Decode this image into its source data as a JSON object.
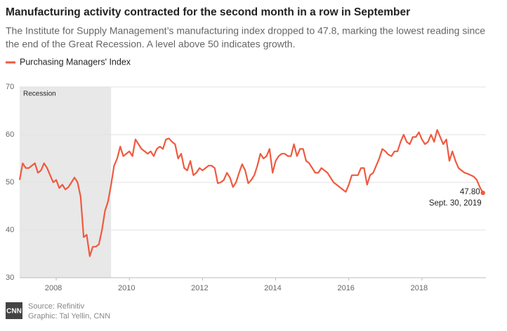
{
  "chart_data": {
    "type": "line",
    "title": "Manufacturing activity contracted for the second month in a row in September",
    "subtitle": [
      "The Institute for Supply Management’s manufacturing index dropped to 47.8, marking the lowest reading since",
      "the end of the Great Recession. A level above 50 indicates growth."
    ],
    "series": [
      {
        "name": "Purchasing Managers' Index",
        "color": "#ef5a3f",
        "x": [
          2007,
          2007.083,
          2007.167,
          2007.25,
          2007.333,
          2007.417,
          2007.5,
          2007.583,
          2007.667,
          2007.75,
          2007.833,
          2007.917,
          2008,
          2008.083,
          2008.167,
          2008.25,
          2008.333,
          2008.417,
          2008.5,
          2008.583,
          2008.667,
          2008.75,
          2008.833,
          2008.917,
          2009,
          2009.083,
          2009.167,
          2009.25,
          2009.333,
          2009.417,
          2009.5,
          2009.583,
          2009.667,
          2009.75,
          2009.833,
          2009.917,
          2010,
          2010.083,
          2010.167,
          2010.25,
          2010.333,
          2010.417,
          2010.5,
          2010.583,
          2010.667,
          2010.75,
          2010.833,
          2010.917,
          2011,
          2011.083,
          2011.167,
          2011.25,
          2011.333,
          2011.417,
          2011.5,
          2011.583,
          2011.667,
          2011.75,
          2011.833,
          2011.917,
          2012,
          2012.083,
          2012.167,
          2012.25,
          2012.333,
          2012.417,
          2012.5,
          2012.583,
          2012.667,
          2012.75,
          2012.833,
          2012.917,
          2013,
          2013.083,
          2013.167,
          2013.25,
          2013.333,
          2013.417,
          2013.5,
          2013.583,
          2013.667,
          2013.75,
          2013.833,
          2013.917,
          2014,
          2014.083,
          2014.167,
          2014.25,
          2014.333,
          2014.417,
          2014.5,
          2014.583,
          2014.667,
          2014.75,
          2014.833,
          2014.917,
          2015,
          2015.083,
          2015.167,
          2015.25,
          2015.333,
          2015.417,
          2015.5,
          2015.583,
          2015.667,
          2015.75,
          2015.833,
          2015.917,
          2016,
          2016.083,
          2016.167,
          2016.25,
          2016.333,
          2016.417,
          2016.5,
          2016.583,
          2016.667,
          2016.75,
          2016.833,
          2016.917,
          2017,
          2017.083,
          2017.167,
          2017.25,
          2017.333,
          2017.417,
          2017.5,
          2017.583,
          2017.667,
          2017.75,
          2017.833,
          2017.917,
          2018,
          2018.083,
          2018.167,
          2018.25,
          2018.333,
          2018.417,
          2018.5,
          2018.583,
          2018.667,
          2018.75,
          2018.833,
          2018.917,
          2019,
          2019.083,
          2019.167,
          2019.25,
          2019.333,
          2019.417,
          2019.5,
          2019.583,
          2019.667
        ],
        "values": [
          50.5,
          54,
          53,
          53,
          53.5,
          54,
          52,
          52.5,
          54,
          53,
          51.5,
          50,
          50.5,
          48.8,
          49.5,
          48.5,
          49,
          50,
          51,
          50,
          47,
          38.5,
          39,
          34.5,
          36.5,
          36.5,
          37,
          40,
          44,
          46,
          49.5,
          53.5,
          55,
          57.5,
          55.5,
          56,
          56.5,
          55.5,
          59,
          58,
          57,
          56.5,
          56,
          56.5,
          55.5,
          57,
          57.5,
          57,
          59,
          59.2,
          58.5,
          58,
          55,
          56,
          53,
          52.5,
          54.5,
          51.5,
          52,
          53,
          52.5,
          53,
          53.5,
          53.5,
          53,
          49.8,
          50,
          50.5,
          52,
          51,
          49,
          50,
          52,
          53.8,
          52.5,
          49.8,
          50.5,
          51.5,
          53.5,
          56,
          55,
          55.5,
          57,
          52,
          54.5,
          55.5,
          56,
          56,
          55.5,
          55.5,
          58,
          55.5,
          57,
          57,
          54.5,
          54,
          53,
          52,
          52,
          53,
          52.5,
          52,
          51,
          50,
          49.5,
          49,
          48.5,
          48,
          49.5,
          51.5,
          51.5,
          51.5,
          53,
          53,
          49.5,
          51.5,
          52,
          53.5,
          55,
          57,
          56.5,
          55.8,
          55.5,
          56.5,
          56.5,
          58.5,
          60,
          58.5,
          58,
          59.5,
          59.5,
          60.5,
          59,
          58,
          58.5,
          60,
          58.5,
          61,
          59.5,
          58,
          59,
          54.5,
          56.5,
          54.5,
          53,
          52.5,
          52,
          51.8,
          51.5,
          51.2,
          50.5,
          49,
          47.8
        ]
      }
    ],
    "xlim": [
      2007,
      2019.75
    ],
    "xticks": [
      2008,
      2010,
      2012,
      2014,
      2016,
      2018
    ],
    "ylim": [
      30,
      70
    ],
    "yticks": [
      30,
      40,
      50,
      60,
      70
    ],
    "grid": true,
    "recession": {
      "label": "Recession",
      "xlim": [
        2007,
        2009.5
      ]
    },
    "end_label": {
      "value": "47.80",
      "date": "Sept. 30, 2019"
    },
    "source": "Source: Refinitiv",
    "credit": "Graphic: Tal Yellin, CNN",
    "logo": "CNN"
  }
}
